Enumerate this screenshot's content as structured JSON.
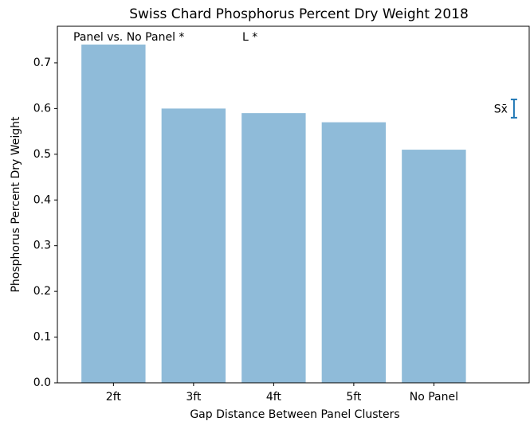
{
  "chart_data": {
    "type": "bar",
    "title": "Swiss Chard Phosphorus Percent Dry Weight 2018",
    "x_label": "Gap Distance Between Panel Clusters",
    "y_label": "Phosphorus Percent Dry Weight",
    "categories": [
      "2ft",
      "3ft",
      "4ft",
      "5ft",
      "No Panel"
    ],
    "values": [
      0.74,
      0.6,
      0.59,
      0.57,
      0.51
    ],
    "color": "#8fbbd9",
    "xlim": [
      -0.7,
      5.2
    ],
    "ylim": [
      0,
      0.78
    ],
    "yticks": [
      {
        "value": 0,
        "label": "0.0"
      },
      0.1,
      0.2,
      0.3,
      0.4,
      0.5,
      0.6,
      0.7
    ],
    "annotations": [
      "Panel vs. No Panel *",
      "L *"
    ],
    "error_bar": {
      "label": "Sx̄",
      "x": 5,
      "value": 0.6,
      "error": 0.02,
      "color": "#1f77b4"
    },
    "grid": false
  }
}
